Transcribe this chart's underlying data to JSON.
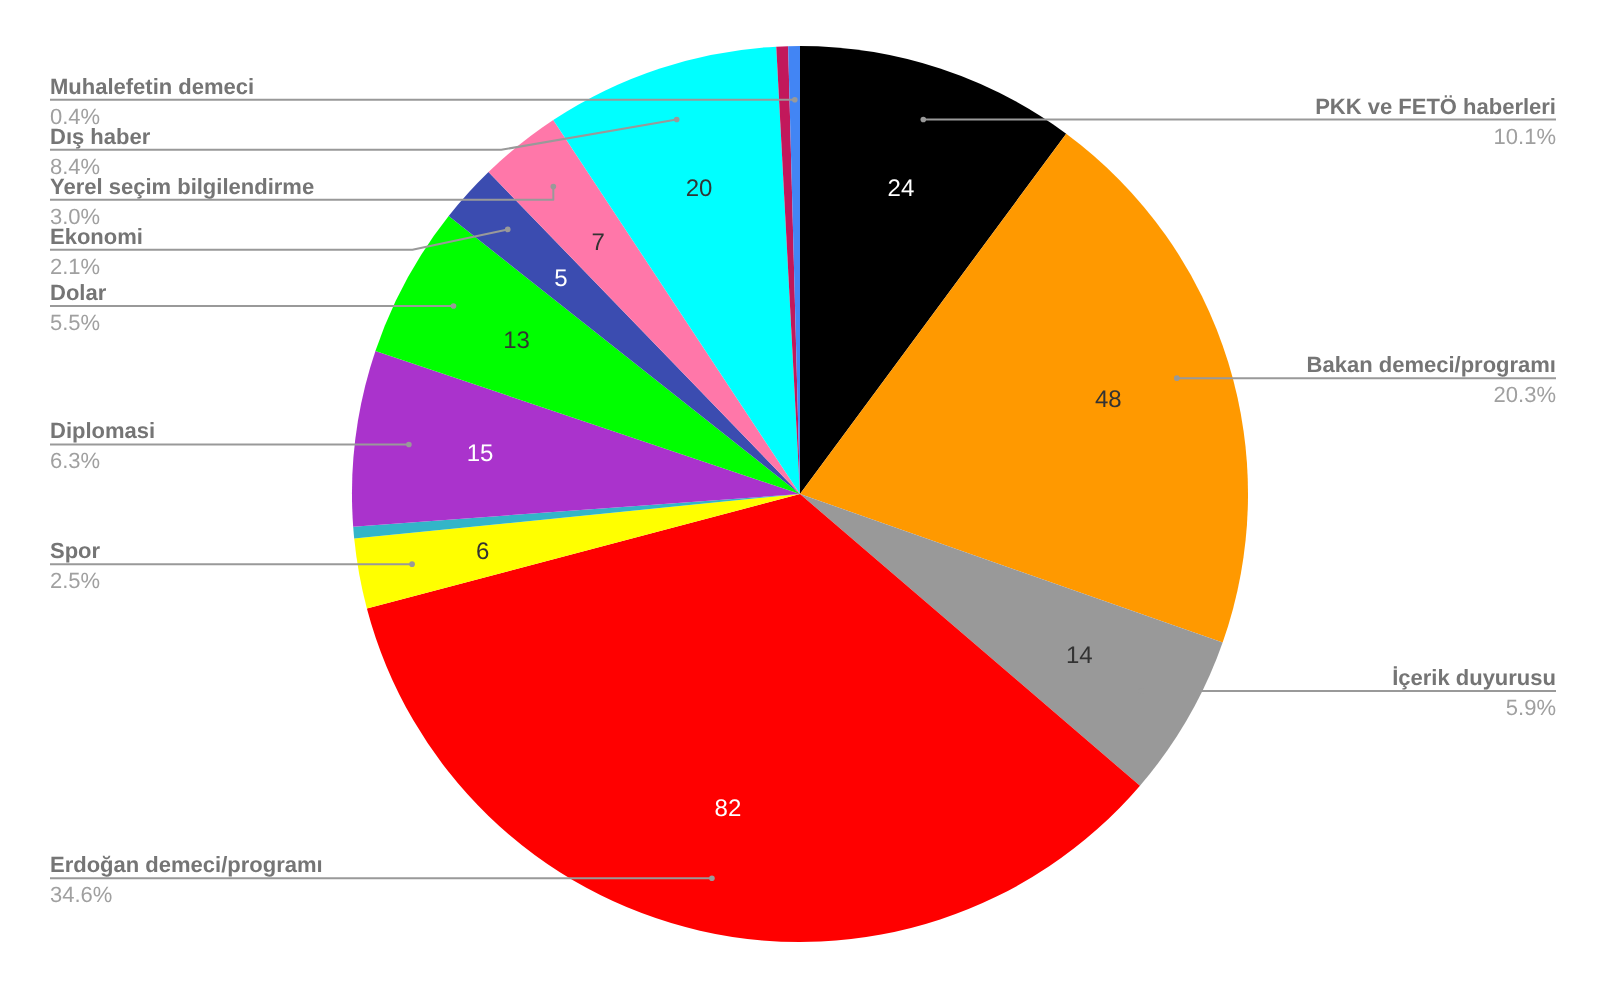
{
  "chart_data": {
    "type": "pie",
    "categories": [
      "PKK ve FETÖ haberleri",
      "Bakan demeci/programı",
      "İçerik duyurusu",
      "Erdoğan demeci/programı",
      "Spor",
      null,
      "Diplomasi",
      "Dolar",
      "Ekonomi",
      "Yerel seçim bilgilendirme",
      "Dış haber",
      null,
      "Muhalefetin demeci"
    ],
    "values": [
      24,
      48,
      14,
      82,
      6,
      1,
      15,
      13,
      5,
      7,
      20,
      1,
      1
    ],
    "value_labels": [
      "24",
      "48",
      "14",
      "82",
      "6",
      null,
      "15",
      "13",
      "5",
      "7",
      "20",
      null,
      null
    ],
    "colors": [
      "#000000",
      "#ff9900",
      "#999999",
      "#ff0000",
      "#ffff00",
      "#33b5c8",
      "#aa33cc",
      "#00ff00",
      "#3b4cb0",
      "#ff77a9",
      "#00ffff",
      "#c2185b",
      "#4285f4"
    ],
    "annotations": [
      "10.1%",
      "20.3%",
      "5.9%",
      "34.6%",
      "2.5%",
      "6.3%",
      "5.5%",
      "2.1%",
      "3.0%",
      "8.4%",
      "0.4%"
    ]
  }
}
